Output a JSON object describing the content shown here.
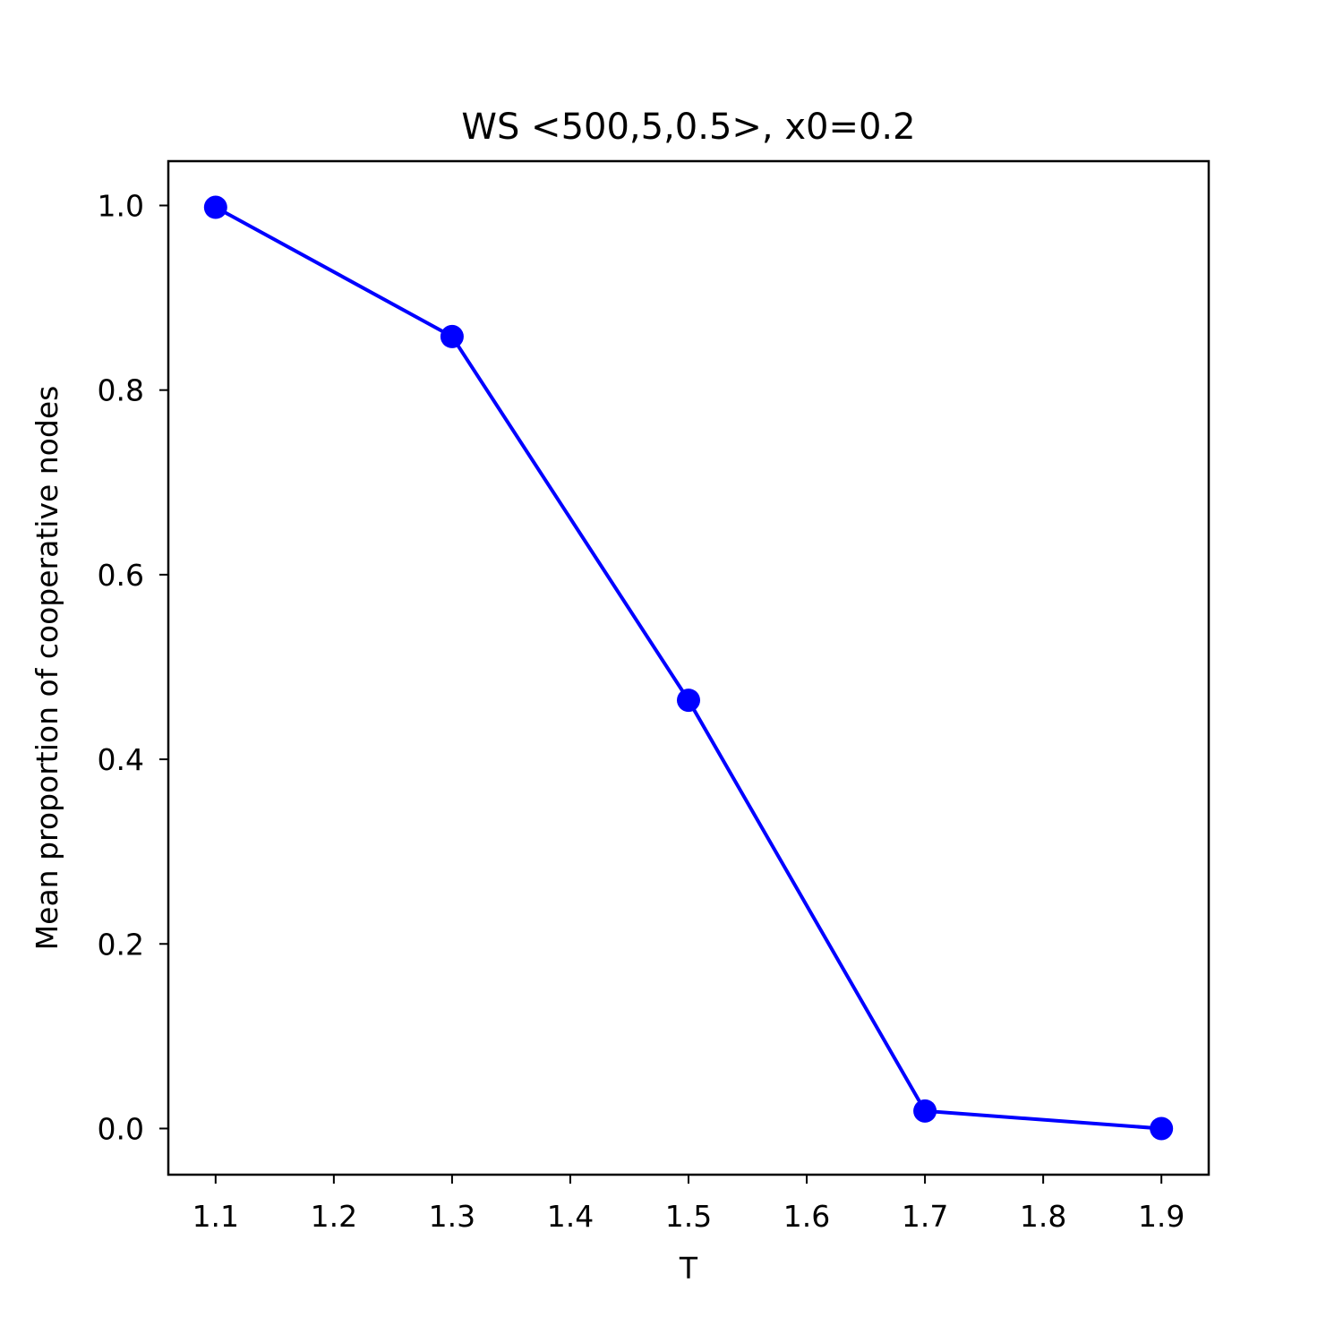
{
  "chart_data": {
    "type": "line",
    "title": "WS <500,5,0.5>, x0=0.2",
    "xlabel": "T",
    "ylabel": "Mean proportion of cooperative nodes",
    "x": [
      1.1,
      1.3,
      1.5,
      1.7,
      1.9
    ],
    "series": [
      {
        "values": [
          0.998,
          0.858,
          0.464,
          0.019,
          0.0
        ]
      }
    ],
    "xlim": [
      1.06,
      1.94
    ],
    "ylim": [
      -0.05,
      1.048
    ],
    "xticks": [
      1.1,
      1.2,
      1.3,
      1.4,
      1.5,
      1.6,
      1.7,
      1.8,
      1.9
    ],
    "xtick_labels": [
      "1.1",
      "1.2",
      "1.3",
      "1.4",
      "1.5",
      "1.6",
      "1.7",
      "1.8",
      "1.9"
    ],
    "yticks": [
      0.0,
      0.2,
      0.4,
      0.6,
      0.8,
      1.0
    ],
    "ytick_labels": [
      "0.0",
      "0.2",
      "0.4",
      "0.6",
      "0.8",
      "1.0"
    ],
    "grid": false,
    "legend": "none",
    "line_color": "#0000ff",
    "marker": "circle"
  }
}
